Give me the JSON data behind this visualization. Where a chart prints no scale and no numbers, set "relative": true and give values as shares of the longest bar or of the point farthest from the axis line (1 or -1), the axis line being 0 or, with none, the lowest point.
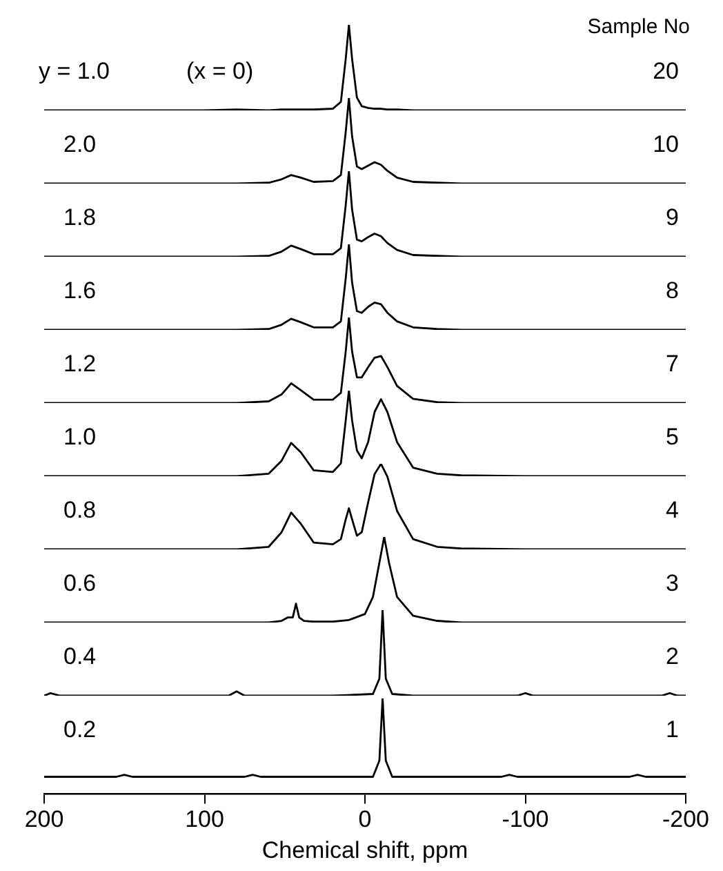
{
  "chart_data": [
    {
      "type": "line",
      "relative": true,
      "color": "#000000",
      "xlim": [
        200,
        -200
      ],
      "tick_labels": false,
      "grid": false,
      "marker": "none",
      "annotations": [
        "y = 1.0",
        "(x = 0)",
        "Sample No",
        "20"
      ],
      "x": [
        200,
        180,
        150,
        120,
        100,
        80,
        60,
        52,
        46,
        40,
        32,
        20,
        15,
        12,
        10,
        8,
        5,
        2,
        -2,
        -6,
        -10,
        -14,
        -20,
        -30,
        -45,
        -60,
        -100,
        -150,
        -200
      ],
      "values": [
        0,
        0,
        0,
        0,
        0,
        0.01,
        0,
        0.01,
        0.01,
        0.01,
        0.01,
        0.02,
        0.1,
        0.6,
        1,
        0.6,
        0.15,
        0.05,
        0.03,
        0.02,
        0.02,
        0.01,
        0.01,
        0,
        0,
        0,
        0,
        0,
        0
      ]
    },
    {
      "type": "line",
      "relative": true,
      "color": "#000000",
      "xlim": [
        200,
        -200
      ],
      "tick_labels": false,
      "grid": false,
      "marker": "none",
      "annotations": [
        "2.0",
        "10"
      ],
      "x": [
        200,
        180,
        150,
        120,
        100,
        80,
        60,
        52,
        46,
        40,
        32,
        20,
        15,
        12,
        10,
        8,
        5,
        2,
        -2,
        -6,
        -10,
        -14,
        -20,
        -30,
        -45,
        -60,
        -100,
        -150,
        -200
      ],
      "values": [
        0,
        0,
        0,
        0,
        0,
        0,
        0.01,
        0.05,
        0.1,
        0.07,
        0.02,
        0.03,
        0.1,
        0.6,
        1,
        0.55,
        0.2,
        0.17,
        0.21,
        0.25,
        0.22,
        0.15,
        0.07,
        0.02,
        0.01,
        0,
        0,
        0,
        0
      ]
    },
    {
      "type": "line",
      "relative": true,
      "color": "#000000",
      "xlim": [
        200,
        -200
      ],
      "tick_labels": false,
      "grid": false,
      "marker": "none",
      "annotations": [
        "1.8",
        "9"
      ],
      "x": [
        200,
        180,
        150,
        120,
        100,
        80,
        60,
        52,
        46,
        40,
        32,
        20,
        15,
        12,
        10,
        8,
        5,
        2,
        -2,
        -6,
        -10,
        -14,
        -20,
        -30,
        -45,
        -60,
        -100,
        -150,
        -200
      ],
      "values": [
        0,
        0,
        0,
        0,
        0,
        0,
        0.01,
        0.06,
        0.13,
        0.09,
        0.03,
        0.03,
        0.1,
        0.6,
        1,
        0.55,
        0.2,
        0.18,
        0.23,
        0.27,
        0.24,
        0.16,
        0.08,
        0.02,
        0.01,
        0,
        0,
        0,
        0
      ]
    },
    {
      "type": "line",
      "relative": true,
      "color": "#000000",
      "xlim": [
        200,
        -200
      ],
      "tick_labels": false,
      "grid": false,
      "marker": "none",
      "annotations": [
        "1.6",
        "8"
      ],
      "x": [
        200,
        180,
        150,
        120,
        100,
        80,
        60,
        52,
        46,
        40,
        32,
        20,
        15,
        12,
        10,
        8,
        5,
        2,
        -2,
        -6,
        -10,
        -14,
        -20,
        -30,
        -45,
        -60,
        -100,
        -150,
        -200
      ],
      "values": [
        0,
        0,
        0,
        0,
        0,
        0,
        0.01,
        0.06,
        0.13,
        0.09,
        0.03,
        0.03,
        0.1,
        0.6,
        1,
        0.55,
        0.22,
        0.2,
        0.27,
        0.32,
        0.3,
        0.2,
        0.1,
        0.03,
        0.01,
        0,
        0,
        0,
        0
      ]
    },
    {
      "type": "line",
      "relative": true,
      "color": "#000000",
      "xlim": [
        200,
        -200
      ],
      "tick_labels": false,
      "grid": false,
      "marker": "none",
      "annotations": [
        "1.2",
        "7"
      ],
      "x": [
        200,
        180,
        150,
        120,
        100,
        80,
        60,
        52,
        46,
        40,
        32,
        20,
        15,
        12,
        10,
        8,
        5,
        2,
        -2,
        -6,
        -10,
        -14,
        -20,
        -30,
        -45,
        -60,
        -100,
        -150,
        -200
      ],
      "values": [
        0,
        0,
        0,
        0,
        0,
        0,
        0.02,
        0.1,
        0.23,
        0.15,
        0.04,
        0.04,
        0.12,
        0.6,
        1,
        0.6,
        0.3,
        0.3,
        0.42,
        0.53,
        0.55,
        0.42,
        0.2,
        0.05,
        0.01,
        0,
        0,
        0,
        0
      ]
    },
    {
      "type": "line",
      "relative": true,
      "color": "#000000",
      "xlim": [
        200,
        -200
      ],
      "tick_labels": false,
      "grid": false,
      "marker": "none",
      "annotations": [
        "1.0",
        "5"
      ],
      "x": [
        200,
        180,
        150,
        120,
        100,
        80,
        60,
        52,
        46,
        40,
        32,
        20,
        15,
        12,
        10,
        8,
        5,
        2,
        -2,
        -6,
        -10,
        -14,
        -20,
        -30,
        -45,
        -60,
        -100,
        -150,
        -200
      ],
      "values": [
        0,
        0,
        0,
        0,
        0,
        0,
        0.03,
        0.18,
        0.39,
        0.28,
        0.07,
        0.05,
        0.15,
        0.65,
        1,
        0.65,
        0.3,
        0.21,
        0.4,
        0.75,
        0.9,
        0.75,
        0.4,
        0.1,
        0.03,
        0.01,
        0,
        0,
        0
      ]
    },
    {
      "type": "line",
      "relative": true,
      "color": "#000000",
      "xlim": [
        200,
        -200
      ],
      "tick_labels": false,
      "grid": false,
      "marker": "none",
      "annotations": [
        "0.8",
        "4"
      ],
      "x": [
        200,
        180,
        150,
        120,
        100,
        80,
        60,
        52,
        46,
        40,
        32,
        20,
        15,
        12,
        10,
        8,
        5,
        2,
        -2,
        -6,
        -10,
        -14,
        -20,
        -30,
        -45,
        -60,
        -100,
        -150,
        -200
      ],
      "values": [
        0,
        0,
        0,
        0,
        0,
        0,
        0.03,
        0.2,
        0.43,
        0.3,
        0.08,
        0.06,
        0.12,
        0.35,
        0.48,
        0.35,
        0.16,
        0.2,
        0.55,
        0.88,
        1,
        0.85,
        0.45,
        0.12,
        0.03,
        0.01,
        0,
        0,
        0
      ]
    },
    {
      "type": "line",
      "relative": true,
      "color": "#000000",
      "xlim": [
        200,
        -200
      ],
      "tick_labels": false,
      "grid": false,
      "marker": "none",
      "annotations": [
        "0.6",
        "3"
      ],
      "x": [
        200,
        180,
        150,
        120,
        100,
        80,
        60,
        52,
        48,
        45,
        43,
        41,
        38,
        32,
        20,
        10,
        0,
        -5,
        -9,
        -12,
        -15,
        -20,
        -30,
        -45,
        -60,
        -100,
        -150,
        -200
      ],
      "values": [
        0,
        0,
        0,
        0,
        0,
        0,
        0,
        0.02,
        0.06,
        0.06,
        0.22,
        0.06,
        0.02,
        0.01,
        0.01,
        0.03,
        0.1,
        0.3,
        0.7,
        1,
        0.7,
        0.3,
        0.08,
        0.02,
        0,
        0,
        0,
        0
      ]
    },
    {
      "type": "line",
      "relative": true,
      "color": "#000000",
      "xlim": [
        200,
        -200
      ],
      "tick_labels": false,
      "grid": false,
      "marker": "none",
      "annotations": [
        "0.4",
        "2"
      ],
      "x": [
        200,
        196,
        190,
        150,
        85,
        80,
        75,
        20,
        -5,
        -9,
        -11,
        -13,
        -17,
        -30,
        -95,
        -100,
        -105,
        -185,
        -190,
        -195,
        -200
      ],
      "values": [
        0,
        0.03,
        0,
        0,
        0,
        0.05,
        0,
        0,
        0.02,
        0.2,
        1,
        0.2,
        0.02,
        0,
        0,
        0.03,
        0,
        0,
        0.03,
        0,
        0
      ]
    },
    {
      "type": "line",
      "relative": true,
      "color": "#000000",
      "xlim": [
        200,
        -200
      ],
      "xticks": [
        200,
        100,
        0,
        -100,
        -200
      ],
      "xlabel": "Chemical shift, ppm",
      "tick_labels": "x",
      "grid": false,
      "marker": "none",
      "annotations": [
        "0.2",
        "1"
      ],
      "x": [
        200,
        155,
        150,
        145,
        75,
        70,
        65,
        -5,
        -9,
        -11,
        -13,
        -17,
        -85,
        -90,
        -95,
        -165,
        -170,
        -175,
        -200
      ],
      "values": [
        0.18,
        0.18,
        0.2,
        0.18,
        0.18,
        0.2,
        0.18,
        0.18,
        0.35,
        1,
        0.35,
        0.18,
        0.18,
        0.2,
        0.18,
        0.18,
        0.2,
        0.18,
        0.18
      ]
    }
  ]
}
